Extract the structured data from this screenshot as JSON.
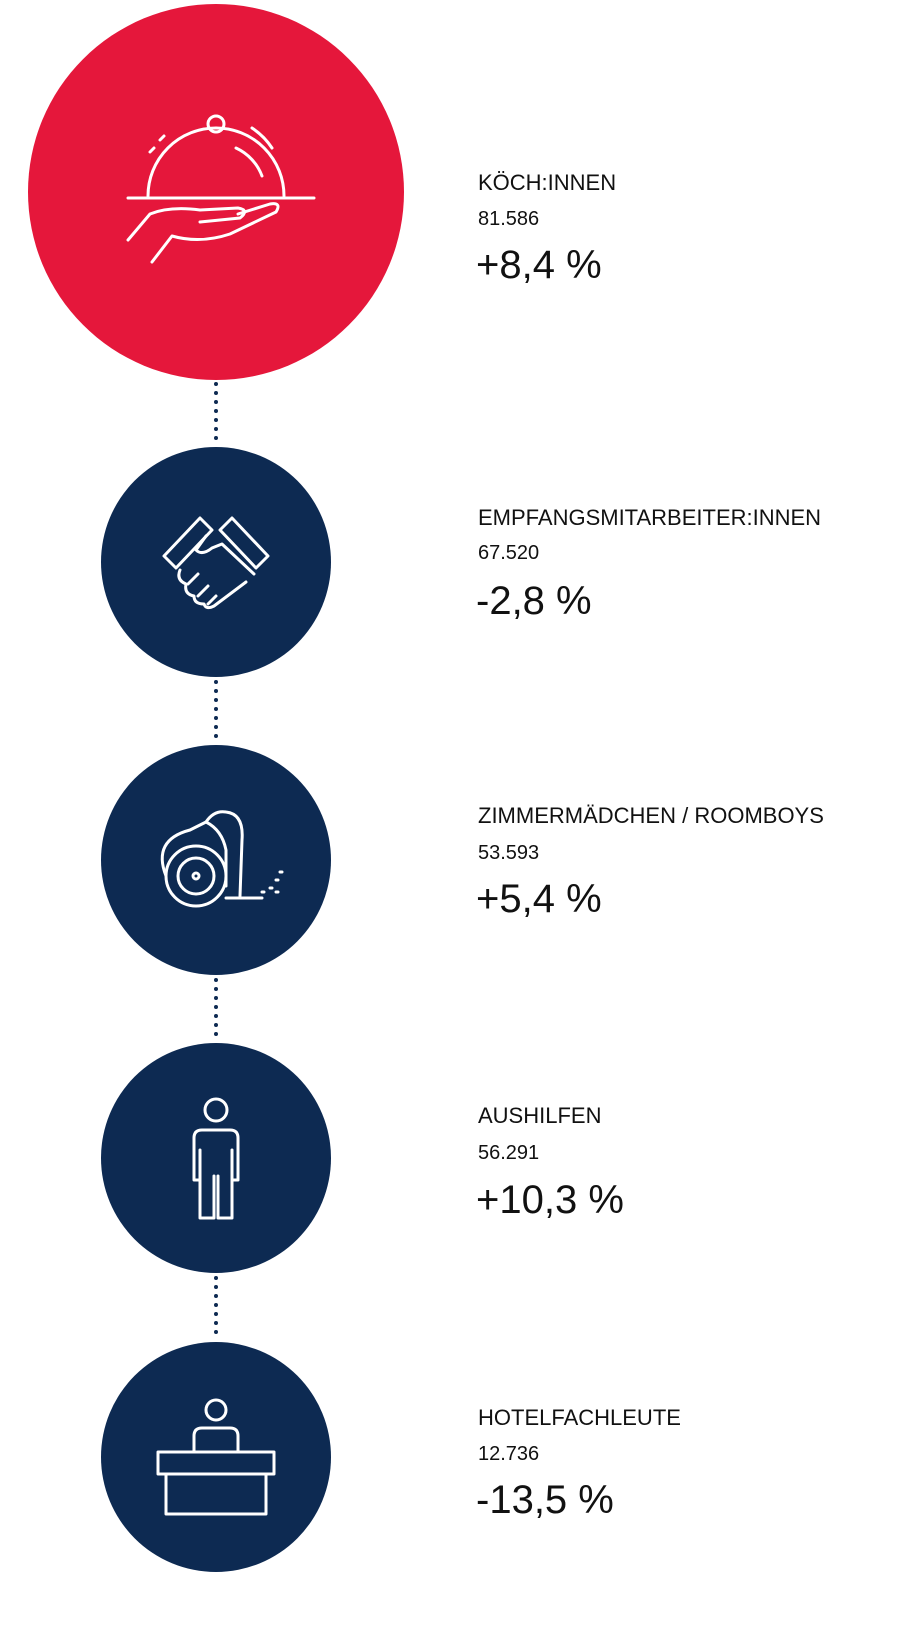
{
  "items": [
    {
      "label": "KÖCH:INNEN",
      "count": "81.586",
      "change": "+8,4 %"
    },
    {
      "label": "EMPFANGSMITARBEITER:INNEN",
      "count": "67.520",
      "change": "-2,8 %"
    },
    {
      "label": "ZIMMERMÄDCHEN / ROOMBOYS",
      "count": "53.593",
      "change": "+5,4 %"
    },
    {
      "label": "AUSHILFEN",
      "count": "56.291",
      "change": "+10,3 %"
    },
    {
      "label": "HOTELFACHLEUTE",
      "count": "12.736",
      "change": "-13,5 %"
    }
  ]
}
